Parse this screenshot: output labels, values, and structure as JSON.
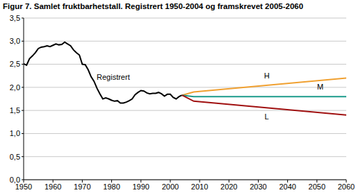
{
  "chart_data": {
    "type": "line",
    "title": "Figur 7.  Samlet fruktbarhetstall. Registrert 1950-2004 og framskrevet 2005-2060",
    "series": [
      {
        "name": "Registrert",
        "color": "#000000",
        "x": [
          1950,
          1951,
          1952,
          1953,
          1954,
          1955,
          1956,
          1957,
          1958,
          1959,
          1960,
          1961,
          1962,
          1963,
          1964,
          1965,
          1966,
          1967,
          1968,
          1969,
          1970,
          1971,
          1972,
          1973,
          1974,
          1975,
          1976,
          1977,
          1978,
          1979,
          1980,
          1981,
          1982,
          1983,
          1984,
          1985,
          1986,
          1987,
          1988,
          1989,
          1990,
          1991,
          1992,
          1993,
          1994,
          1995,
          1996,
          1997,
          1998,
          1999,
          2000,
          2001,
          2002,
          2003,
          2004
        ],
        "values": [
          2.51,
          2.48,
          2.62,
          2.68,
          2.75,
          2.84,
          2.87,
          2.88,
          2.9,
          2.88,
          2.91,
          2.94,
          2.92,
          2.93,
          2.98,
          2.94,
          2.9,
          2.81,
          2.75,
          2.7,
          2.5,
          2.49,
          2.38,
          2.23,
          2.13,
          1.98,
          1.86,
          1.75,
          1.77,
          1.75,
          1.72,
          1.7,
          1.71,
          1.66,
          1.66,
          1.68,
          1.71,
          1.75,
          1.84,
          1.89,
          1.93,
          1.92,
          1.88,
          1.86,
          1.87,
          1.87,
          1.89,
          1.86,
          1.81,
          1.85,
          1.85,
          1.78,
          1.75,
          1.8,
          1.83
        ]
      },
      {
        "name": "H",
        "color": "#f0a030",
        "x": [
          2004,
          2008,
          2060
        ],
        "values": [
          1.83,
          1.9,
          2.2
        ]
      },
      {
        "name": "M",
        "color": "#1a9a8a",
        "x": [
          2004,
          2008,
          2060
        ],
        "values": [
          1.83,
          1.8,
          1.8
        ]
      },
      {
        "name": "L",
        "color": "#a01010",
        "x": [
          2004,
          2008,
          2060
        ],
        "values": [
          1.83,
          1.7,
          1.4
        ]
      }
    ],
    "xlim": [
      1950,
      2060
    ],
    "xticks": [
      1950,
      1960,
      1970,
      1980,
      1990,
      2000,
      2010,
      2020,
      2030,
      2040,
      2050,
      2060
    ],
    "ylim": [
      0,
      3.5
    ],
    "yticks": [
      {
        "value": 0,
        "label": "0,0"
      },
      {
        "value": 0.5,
        "label": "0,5"
      },
      {
        "value": 1,
        "label": "1,0"
      },
      {
        "value": 1.5,
        "label": "1,5"
      },
      {
        "value": 2,
        "label": "2,0"
      },
      {
        "value": 2.5,
        "label": "2,5"
      },
      {
        "value": 3,
        "label": "3,0"
      },
      {
        "value": 3.5,
        "label": "3,5"
      }
    ],
    "grid": true
  }
}
